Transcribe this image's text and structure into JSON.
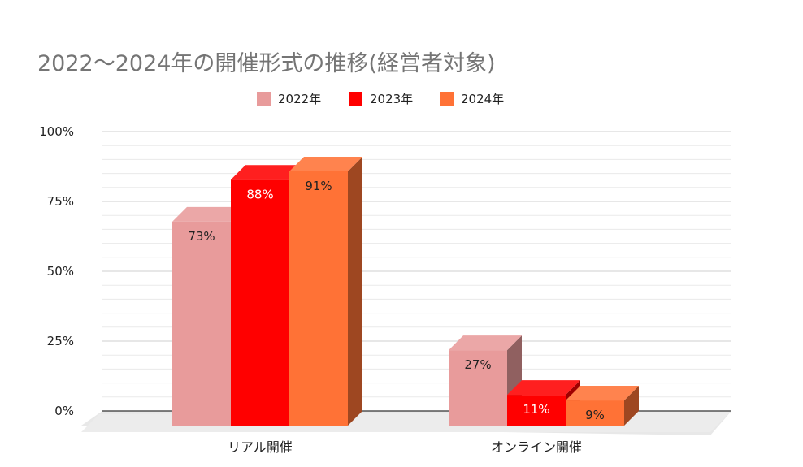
{
  "chart_data": {
    "type": "bar",
    "title": "2022〜2024年の開催形式の推移(経営者対象)",
    "categories": [
      "リアル開催",
      "オンライン開催"
    ],
    "series": [
      {
        "name": "2022年",
        "values": [
          73,
          27
        ],
        "labels": [
          "73%",
          "27%"
        ],
        "color": "#e89b9b",
        "label_color": "#222222"
      },
      {
        "name": "2023年",
        "values": [
          88,
          11
        ],
        "labels": [
          "88%",
          "11%"
        ],
        "color": "#ff0000",
        "label_color": "#ffffff"
      },
      {
        "name": "2024年",
        "values": [
          91,
          9
        ],
        "labels": [
          "91%",
          "9%"
        ],
        "color": "#ff7236",
        "label_color": "#222222"
      }
    ],
    "y_ticks": [
      {
        "value": 100,
        "label": "100%"
      },
      {
        "value": 75,
        "label": "75%"
      },
      {
        "value": 50,
        "label": "50%"
      },
      {
        "value": 25,
        "label": "25%"
      },
      {
        "value": 0,
        "label": "0%"
      }
    ],
    "ylim": [
      0,
      100
    ],
    "legend_position": "top-center",
    "grid": true,
    "style": "3d-bar"
  }
}
